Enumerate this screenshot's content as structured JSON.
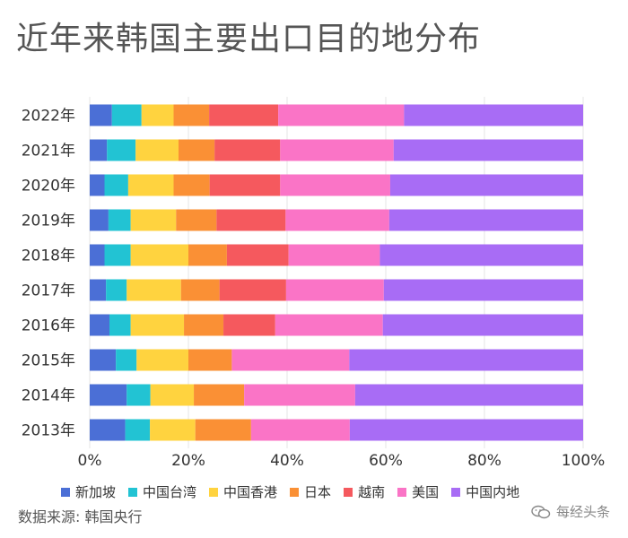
{
  "title": "近年来韩国主要出口目的地分布",
  "source": "数据来源: 韩国央行",
  "watermark": "每经头条",
  "chart_data": {
    "type": "bar",
    "orientation": "horizontal",
    "stacked": "percent",
    "title": "近年来韩国主要出口目的地分布",
    "xlim": [
      0,
      100
    ],
    "x_ticks": [
      "0%",
      "20%",
      "40%",
      "60%",
      "80%",
      "100%"
    ],
    "categories": [
      "2022年",
      "2021年",
      "2020年",
      "2019年",
      "2018年",
      "2017年",
      "2016年",
      "2015年",
      "2014年",
      "2013年"
    ],
    "series": [
      {
        "name": "新加坡",
        "color": "#4b6fd6",
        "values": [
          4.5,
          3.5,
          3.0,
          3.8,
          3.0,
          3.3,
          4.0,
          5.3,
          7.5,
          7.2
        ]
      },
      {
        "name": "中国台湾",
        "color": "#22c3d3",
        "values": [
          6.0,
          5.8,
          4.8,
          4.5,
          5.3,
          4.2,
          4.3,
          4.2,
          4.8,
          5.0
        ]
      },
      {
        "name": "中国香港",
        "color": "#ffd33f",
        "values": [
          6.5,
          8.7,
          9.2,
          9.2,
          11.7,
          11.0,
          10.8,
          10.5,
          8.8,
          9.2
        ]
      },
      {
        "name": "日本",
        "color": "#fa9035",
        "values": [
          7.2,
          7.3,
          7.3,
          8.2,
          7.8,
          7.8,
          8.0,
          8.8,
          10.2,
          11.3
        ]
      },
      {
        "name": "越南",
        "color": "#f5595e",
        "values": [
          14.0,
          13.3,
          14.3,
          14.0,
          12.5,
          13.5,
          10.5,
          0,
          0,
          0
        ]
      },
      {
        "name": "美国",
        "color": "#fa74c6",
        "values": [
          25.5,
          23.0,
          22.3,
          21.0,
          18.5,
          19.8,
          21.8,
          23.8,
          22.5,
          20.0
        ]
      },
      {
        "name": "中国内地",
        "color": "#a86cf5",
        "values": [
          36.3,
          38.4,
          39.1,
          39.3,
          41.2,
          40.4,
          40.6,
          47.4,
          46.2,
          47.3
        ]
      }
    ]
  }
}
